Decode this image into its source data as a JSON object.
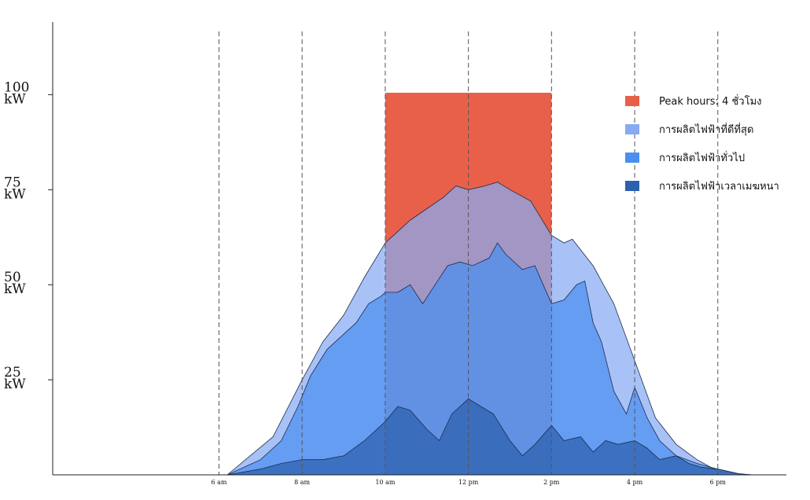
{
  "chart_data": {
    "type": "area",
    "x_unit": "hour of day",
    "y_unit": "kW",
    "xlim": [
      2.0,
      19.65
    ],
    "ylim": [
      0,
      122
    ],
    "x_ticks": [
      {
        "x": 6,
        "label": "6 am"
      },
      {
        "x": 8,
        "label": "8 am"
      },
      {
        "x": 10,
        "label": "10 am"
      },
      {
        "x": 12,
        "label": "12 pm"
      },
      {
        "x": 14,
        "label": "2 pm"
      },
      {
        "x": 16,
        "label": "4 pm"
      },
      {
        "x": 18,
        "label": "6 pm"
      }
    ],
    "y_ticks": [
      {
        "y": 25,
        "line1": "25",
        "line2": "kW"
      },
      {
        "y": 50,
        "line1": "50",
        "line2": "kW"
      },
      {
        "y": 75,
        "line1": "75",
        "line2": "kW"
      },
      {
        "y": 100,
        "line1": "100",
        "line2": "kW"
      }
    ],
    "vertical_dashed_lines": [
      6,
      8,
      10,
      12,
      14,
      16,
      18
    ],
    "peak_hours": {
      "label": "Peak hours: 4 ชั่วโมง",
      "x_start": 10,
      "x_end": 14,
      "y": 100.5,
      "color": "#e8604a"
    },
    "series": [
      {
        "name": "การผลิตไฟฟ้าที่ดีที่สุด",
        "color": "#86aaf4",
        "x": [
          6.2,
          7.3,
          8.0,
          8.5,
          9.0,
          9.5,
          10.0,
          10.6,
          11.0,
          11.4,
          11.7,
          12.0,
          12.4,
          12.7,
          13.0,
          13.5,
          14.0,
          14.3,
          14.5,
          15.0,
          15.5,
          16.0,
          16.5,
          17.0,
          17.5,
          18.0,
          18.5,
          18.9
        ],
        "y": [
          0,
          10,
          25,
          35,
          42,
          52,
          61,
          67,
          70,
          73,
          76,
          75,
          76,
          77,
          75,
          72,
          63,
          61,
          62,
          55,
          45,
          30,
          15,
          8,
          4,
          1,
          0.2,
          0
        ]
      },
      {
        "name": "การผลิตไฟฟ้าทั่วไป",
        "color": "#4a8ff0",
        "x": [
          6.2,
          7.0,
          7.5,
          7.9,
          8.2,
          8.6,
          9.0,
          9.3,
          9.6,
          9.9,
          10.0,
          10.3,
          10.6,
          10.9,
          11.2,
          11.5,
          11.8,
          12.1,
          12.5,
          12.7,
          12.9,
          13.3,
          13.6,
          14.0,
          14.3,
          14.6,
          14.8,
          15.0,
          15.2,
          15.5,
          15.8,
          16.0,
          16.3,
          16.6,
          17.0,
          17.5,
          18.0,
          18.5,
          18.8
        ],
        "y": [
          0,
          4,
          9,
          18,
          26,
          33,
          37,
          40,
          45,
          47,
          48,
          48,
          50,
          45,
          50,
          55,
          56,
          55,
          57,
          61,
          58,
          54,
          55,
          45,
          46,
          50,
          51,
          40,
          35,
          22,
          16,
          23,
          15,
          9,
          5,
          3,
          1.5,
          0.3,
          0
        ]
      },
      {
        "name": "การผลิตไฟฟ้าเวลาเมฆหนา",
        "color": "#2d60ad",
        "x": [
          6.2,
          7.0,
          7.5,
          8.0,
          8.5,
          9.0,
          9.5,
          10.0,
          10.3,
          10.6,
          11.0,
          11.3,
          11.6,
          12.0,
          12.3,
          12.6,
          13.0,
          13.3,
          13.6,
          14.0,
          14.3,
          14.7,
          15.0,
          15.3,
          15.6,
          16.0,
          16.3,
          16.6,
          17.0,
          17.3,
          17.6,
          18.0,
          18.5,
          18.8
        ],
        "y": [
          0,
          1.5,
          3,
          4,
          4,
          5,
          9,
          14,
          18,
          17,
          12,
          9,
          16,
          20,
          18,
          16,
          9,
          5,
          8,
          13,
          9,
          10,
          6,
          9,
          8,
          9,
          7,
          4,
          5,
          3,
          2,
          1.5,
          0.3,
          0
        ]
      }
    ],
    "legend_position": "right",
    "legend": [
      {
        "label": "Peak hours: 4 ชั่วโมง",
        "color": "#e8604a"
      },
      {
        "label": "การผลิตไฟฟ้าที่ดีที่สุด",
        "color": "#86aaf4"
      },
      {
        "label": "การผลิตไฟฟ้าทั่วไป",
        "color": "#4a8ff0"
      },
      {
        "label": "การผลิตไฟฟ้าเวลาเมฆหนา",
        "color": "#2d60ad"
      }
    ],
    "grid": false
  }
}
